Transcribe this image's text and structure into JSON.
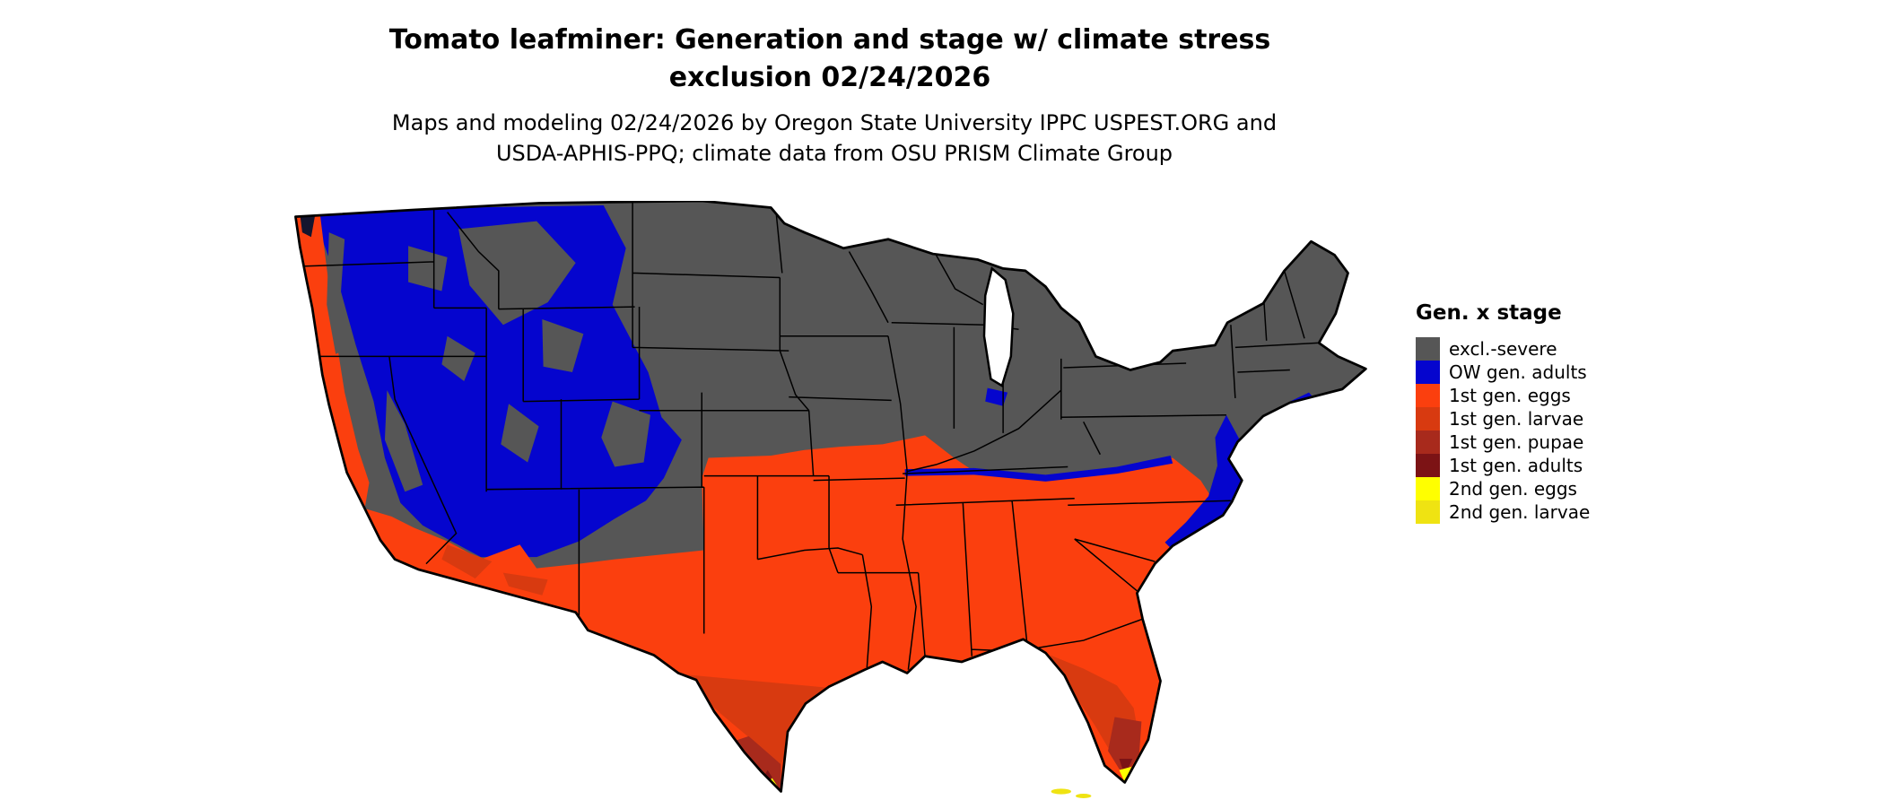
{
  "title": {
    "line1": "Tomato leafminer: Generation and stage w/ climate stress",
    "line2": "exclusion 02/24/2026"
  },
  "subtitle": {
    "line1": "Maps and modeling 02/24/2026 by Oregon State University IPPC USPEST.ORG and",
    "line2": "USDA-APHIS-PPQ; climate data from OSU PRISM Climate Group"
  },
  "legend": {
    "title": "Gen. x stage",
    "items": [
      {
        "label": "excl.-severe",
        "color_key": "excl_severe"
      },
      {
        "label": "OW gen. adults",
        "color_key": "ow_gen_adults"
      },
      {
        "label": "1st gen. eggs",
        "color_key": "gen1_eggs"
      },
      {
        "label": "1st gen. larvae",
        "color_key": "gen1_larvae"
      },
      {
        "label": "1st gen. pupae",
        "color_key": "gen1_pupae"
      },
      {
        "label": "1st gen. adults",
        "color_key": "gen1_adults"
      },
      {
        "label": "2nd gen. eggs",
        "color_key": "gen2_eggs"
      },
      {
        "label": "2nd gen. larvae",
        "color_key": "gen2_larvae"
      }
    ]
  },
  "map": {
    "region_name": "Contiguous United States",
    "model_date": "02/24/2026",
    "colors": {
      "excl_severe": "#565656",
      "ow_gen_adults": "#0505CE",
      "gen1_eggs": "#FB3F0E",
      "gen1_larvae": "#D83A10",
      "gen1_pupae": "#A82A1C",
      "gen1_adults": "#7C1315",
      "gen2_eggs": "#FFFF00",
      "gen2_larvae": "#EFE312",
      "water": "#FFFFFF",
      "border": "#000000",
      "sound_dark": "#15152e"
    }
  }
}
